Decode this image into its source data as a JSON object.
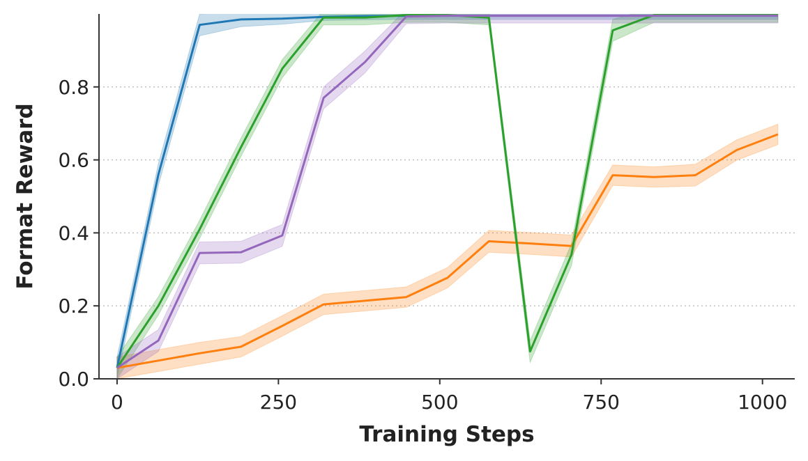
{
  "chart_data": {
    "type": "line",
    "xlabel": "Training Steps",
    "ylabel": "Format Reward",
    "xlim": [
      -28,
      1050
    ],
    "ylim": [
      0,
      1.0
    ],
    "xticks": [
      0,
      250,
      500,
      750,
      1000
    ],
    "xtick_labels": [
      "0",
      "250",
      "500",
      "750",
      "1000"
    ],
    "yticks": [
      0,
      0.2,
      0.4,
      0.6,
      0.8
    ],
    "ytick_labels": [
      "0.0",
      "0.2",
      "0.4",
      "0.6",
      "0.8"
    ],
    "grid": "horizontal dotted",
    "legend": "none",
    "series": [
      {
        "color": "#1f77b4",
        "x": [
          0,
          64,
          128,
          192,
          256,
          320,
          384,
          448,
          512,
          576,
          640,
          704,
          768,
          832,
          896,
          960,
          1024
        ],
        "y": [
          0.03,
          0.56,
          0.97,
          0.985,
          0.987,
          0.992,
          0.994,
          0.995,
          0.995,
          0.995,
          0.995,
          0.995,
          0.995,
          0.995,
          0.995,
          0.995,
          0.995
        ],
        "band": [
          0.03,
          0.03,
          0.03,
          0.02,
          0.015,
          0.01,
          0.01,
          0.01,
          0.01,
          0.01,
          0.01,
          0.01,
          0.01,
          0.01,
          0.01,
          0.01,
          0.01
        ]
      },
      {
        "color": "#ff7f0e",
        "x": [
          0,
          64,
          128,
          192,
          256,
          320,
          384,
          448,
          512,
          576,
          640,
          704,
          768,
          832,
          896,
          960,
          1024
        ],
        "y": [
          0.03,
          0.05,
          0.07,
          0.088,
          0.145,
          0.204,
          0.214,
          0.224,
          0.277,
          0.377,
          0.371,
          0.364,
          0.558,
          0.553,
          0.558,
          0.627,
          0.67
        ],
        "band": [
          0.03,
          0.03,
          0.03,
          0.028,
          0.028,
          0.028,
          0.028,
          0.028,
          0.028,
          0.03,
          0.03,
          0.03,
          0.028,
          0.028,
          0.03,
          0.028,
          0.028
        ]
      },
      {
        "color": "#2ca02c",
        "x": [
          0,
          64,
          128,
          192,
          256,
          320,
          384,
          448,
          512,
          576,
          640,
          704,
          768,
          832,
          896,
          960,
          1024
        ],
        "y": [
          0.03,
          0.2,
          0.41,
          0.635,
          0.85,
          0.99,
          0.99,
          0.997,
          0.997,
          0.99,
          0.075,
          0.34,
          0.955,
          0.997,
          0.997,
          0.997,
          0.997
        ],
        "band": [
          0.03,
          0.025,
          0.025,
          0.025,
          0.025,
          0.02,
          0.02,
          0.02,
          0.02,
          0.02,
          0.03,
          0.03,
          0.03,
          0.02,
          0.02,
          0.02,
          0.02
        ]
      },
      {
        "color": "#9467bd",
        "x": [
          0,
          64,
          128,
          192,
          256,
          320,
          384,
          448,
          512,
          576,
          640,
          704,
          768,
          832,
          896,
          960,
          1024
        ],
        "y": [
          0.03,
          0.105,
          0.345,
          0.347,
          0.393,
          0.77,
          0.868,
          0.993,
          0.995,
          0.995,
          0.995,
          0.995,
          0.995,
          0.995,
          0.995,
          0.995,
          0.995
        ],
        "band": [
          0.03,
          0.03,
          0.03,
          0.03,
          0.03,
          0.03,
          0.03,
          0.02,
          0.02,
          0.02,
          0.02,
          0.02,
          0.02,
          0.02,
          0.02,
          0.02,
          0.02
        ]
      }
    ]
  }
}
